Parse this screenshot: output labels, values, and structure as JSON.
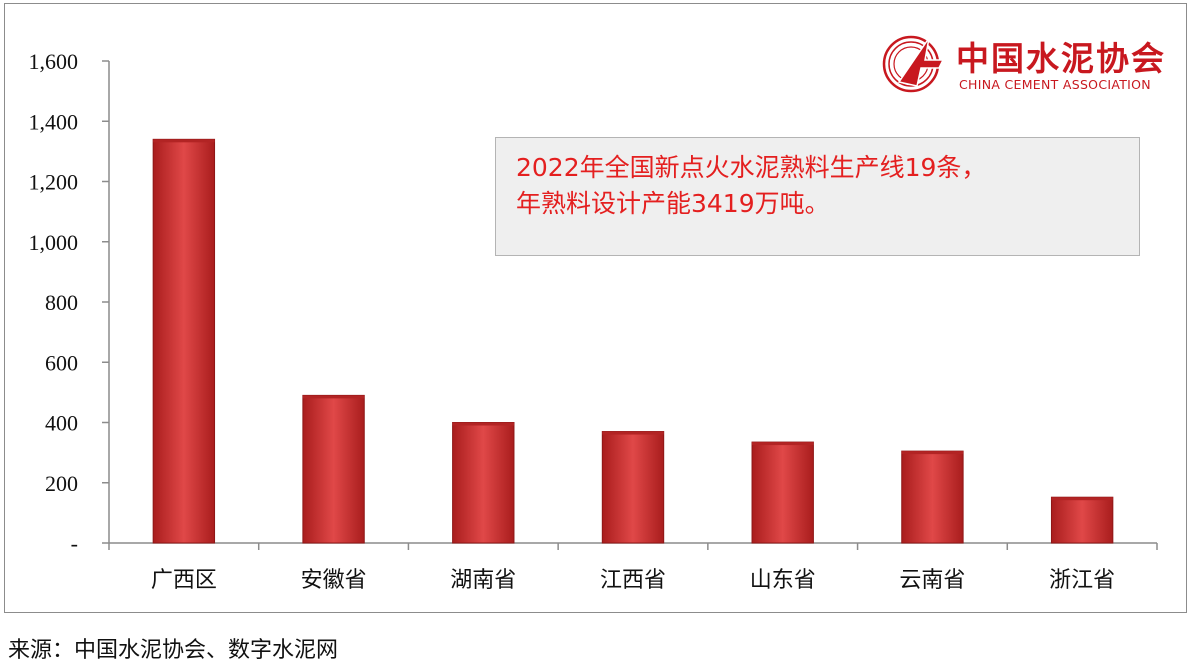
{
  "chart_data": {
    "type": "bar",
    "categories": [
      "广西区",
      "安徽省",
      "湖南省",
      "江西省",
      "山东省",
      "云南省",
      "浙江省"
    ],
    "values": [
      1340,
      490,
      400,
      370,
      335,
      305,
      152
    ],
    "ylim": [
      0,
      1600
    ],
    "yticks": [
      {
        "value": 0,
        "label": "-"
      },
      {
        "value": 200,
        "label": "200"
      },
      {
        "value": 400,
        "label": "400"
      },
      {
        "value": 600,
        "label": "600"
      },
      {
        "value": 800,
        "label": "800"
      },
      {
        "value": 1000,
        "label": "1,000"
      },
      {
        "value": 1200,
        "label": "1,200"
      },
      {
        "value": 1400,
        "label": "1,400"
      },
      {
        "value": 1600,
        "label": "1,600"
      }
    ],
    "grid": false,
    "legend": "none",
    "bar_color": "#c62a2a",
    "title": "",
    "xlabel": "",
    "ylabel": ""
  },
  "annotation": {
    "line1": "2022年全国新点火水泥熟料生产线19条，",
    "line2": "年熟料设计产能3419万吨。"
  },
  "logo": {
    "cn": "中国水泥协会",
    "en": "CHINA CEMENT ASSOCIATION",
    "icon": "china-cement-association-emblem",
    "color": "#c8181f"
  },
  "source": "来源：中国水泥协会、数字水泥网"
}
